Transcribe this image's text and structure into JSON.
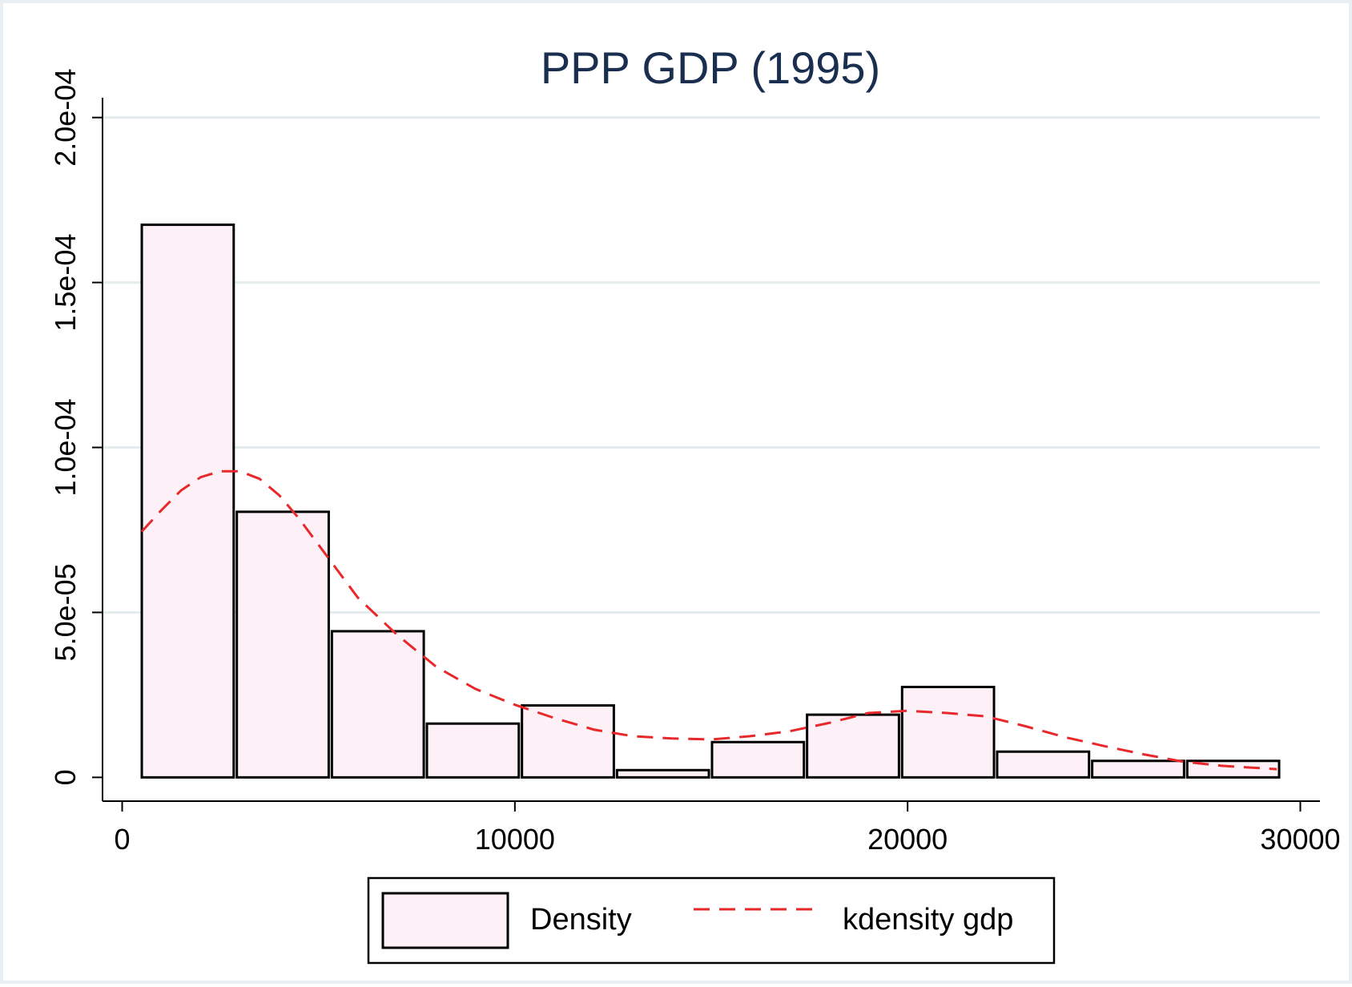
{
  "chart_data": {
    "type": "bar",
    "title": "PPP GDP (1995)",
    "xlabel": "",
    "ylabel": "",
    "xlim": [
      -500,
      30500
    ],
    "ylim": [
      -7.2e-06,
      0.000206
    ],
    "x_ticks": [
      {
        "value": 0,
        "label": "0"
      },
      {
        "value": 10000,
        "label": "10000"
      },
      {
        "value": 20000,
        "label": "20000"
      },
      {
        "value": 30000,
        "label": "30000"
      }
    ],
    "y_ticks": [
      {
        "value": 0,
        "label": "0"
      },
      {
        "value": 5e-05,
        "label": "5.0e-05"
      },
      {
        "value": 0.0001,
        "label": "1.0e-04"
      },
      {
        "value": 0.00015,
        "label": "1.5e-04"
      },
      {
        "value": 0.0002,
        "label": "2.0e-04"
      }
    ],
    "grid": true,
    "series": [
      {
        "name": "Density",
        "kind": "histogram",
        "bins": [
          {
            "x0": 500,
            "x1": 2840,
            "value": 0.0001675
          },
          {
            "x0": 2920,
            "x1": 5260,
            "value": 8.05e-05
          },
          {
            "x0": 5340,
            "x1": 7680,
            "value": 4.43e-05
          },
          {
            "x0": 7760,
            "x1": 10100,
            "value": 1.63e-05
          },
          {
            "x0": 10180,
            "x1": 12520,
            "value": 2.18e-05
          },
          {
            "x0": 12600,
            "x1": 14940,
            "value": 2.2e-06
          },
          {
            "x0": 15020,
            "x1": 17360,
            "value": 1.07e-05
          },
          {
            "x0": 17440,
            "x1": 19780,
            "value": 1.9e-05
          },
          {
            "x0": 19860,
            "x1": 22200,
            "value": 2.74e-05
          },
          {
            "x0": 22280,
            "x1": 24620,
            "value": 7.8e-06
          },
          {
            "x0": 24700,
            "x1": 27040,
            "value": 5e-06
          },
          {
            "x0": 27120,
            "x1": 29460,
            "value": 5e-06
          }
        ],
        "fill": "#fdf0f6",
        "stroke": "#000000"
      },
      {
        "name": "kdensity gdp",
        "kind": "line",
        "style": "dashed",
        "color": "#e8282a",
        "x": [
          500,
          1000,
          1500,
          2000,
          2500,
          3000,
          3500,
          4000,
          4500,
          5000,
          5500,
          6000,
          7000,
          8000,
          9000,
          10000,
          11000,
          12000,
          13000,
          14000,
          15000,
          16000,
          17000,
          18000,
          19000,
          20000,
          21000,
          22000,
          23000,
          24000,
          25000,
          26000,
          27000,
          28000,
          29400
        ],
        "y": [
          7.45e-05,
          8.1e-05,
          8.7e-05,
          9.1e-05,
          9.28e-05,
          9.28e-05,
          9.05e-05,
          8.55e-05,
          7.85e-05,
          7.05e-05,
          6.25e-05,
          5.45e-05,
          4.32e-05,
          3.35e-05,
          2.68e-05,
          2.2e-05,
          1.8e-05,
          1.45e-05,
          1.25e-05,
          1.18e-05,
          1.15e-05,
          1.25e-05,
          1.4e-05,
          1.65e-05,
          1.95e-05,
          2.02e-05,
          1.95e-05,
          1.85e-05,
          1.55e-05,
          1.22e-05,
          9.5e-06,
          7e-06,
          4.8e-06,
          3.5e-06,
          2.5e-06
        ]
      }
    ],
    "legend": {
      "placement": "bottom",
      "entries": [
        "Density",
        "kdensity gdp"
      ]
    }
  }
}
